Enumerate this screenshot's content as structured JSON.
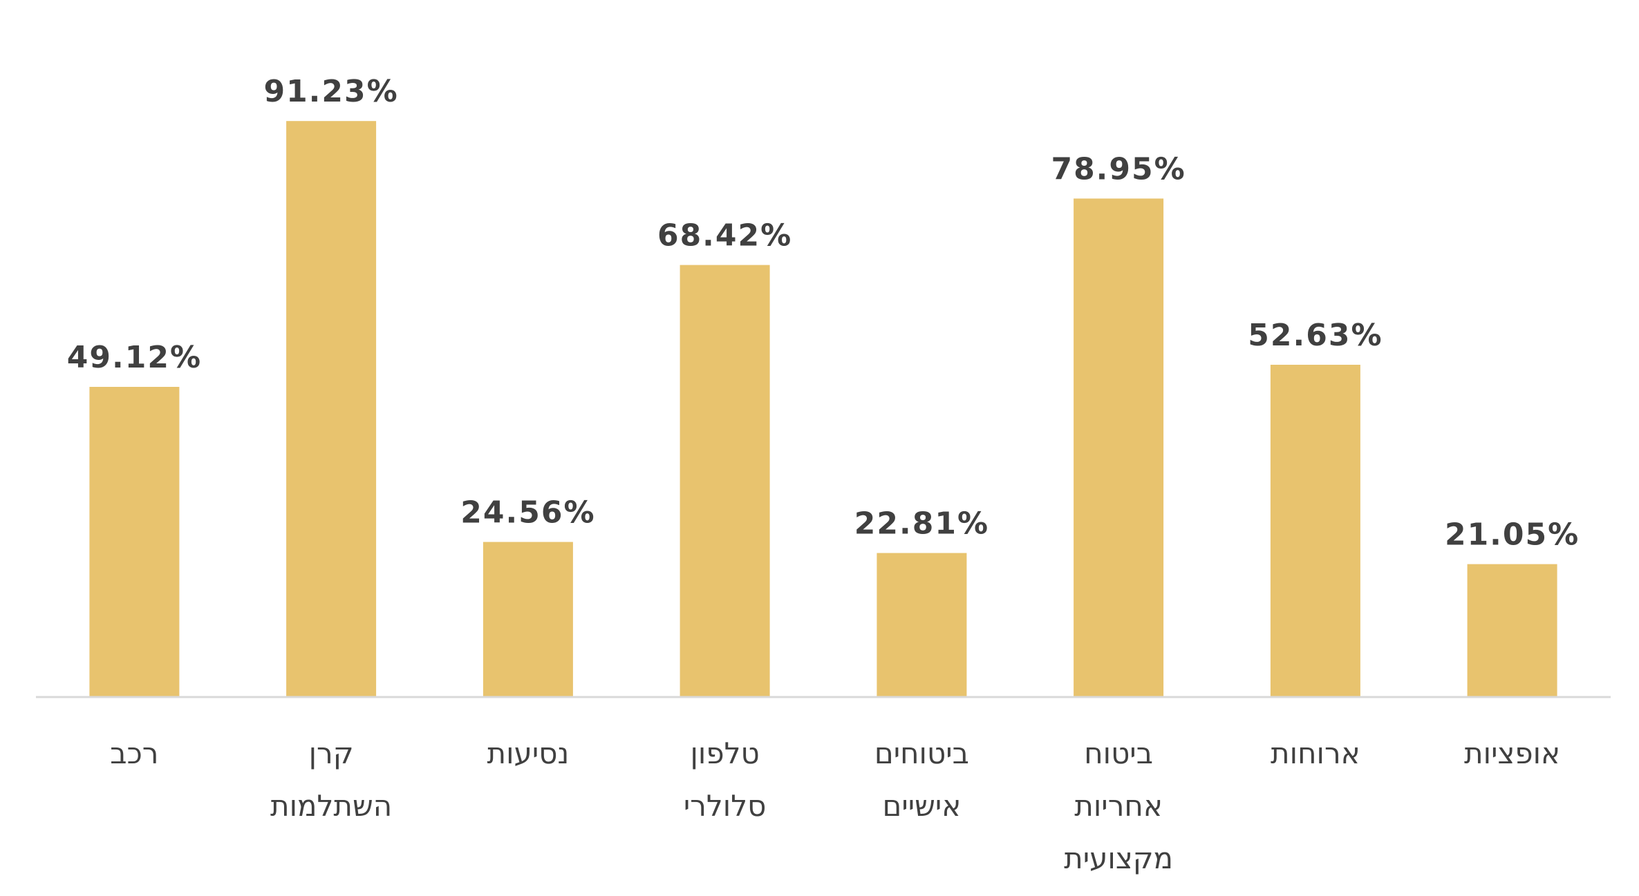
{
  "chart_data": {
    "type": "bar",
    "categories": [
      [
        "רכב"
      ],
      [
        "קרן",
        "השתלמות"
      ],
      [
        "נסיעות"
      ],
      [
        "טלפון",
        "סלולרי"
      ],
      [
        "ביטוחים",
        "אישיים"
      ],
      [
        "ביטוח",
        "אחריות",
        "מקצועית"
      ],
      [
        "ארוחות"
      ],
      [
        "אופציות"
      ]
    ],
    "values": [
      49.12,
      91.23,
      24.56,
      68.42,
      22.81,
      78.95,
      52.63,
      21.05
    ],
    "value_labels": [
      "49.12%",
      "91.23%",
      "24.56%",
      "68.42%",
      "22.81%",
      "78.95%",
      "52.63%",
      "21.05%"
    ],
    "title": "",
    "xlabel": "",
    "ylabel": "",
    "ylim": [
      0,
      100
    ],
    "grid": false,
    "legend": "none",
    "colors": {
      "bar": "#E8C36E",
      "axis": "#D9D9D9",
      "text": "#404040"
    }
  }
}
